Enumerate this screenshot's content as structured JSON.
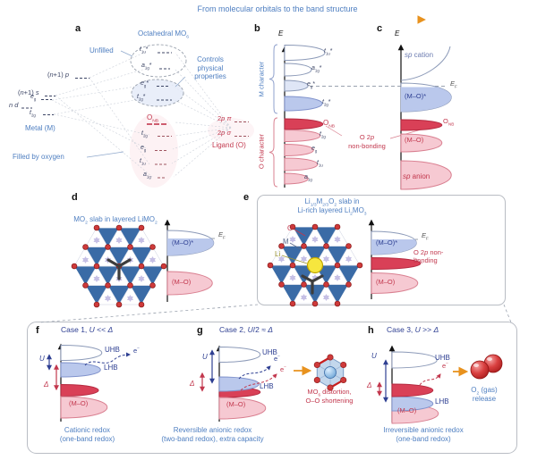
{
  "header": {
    "title": "From molecular orbitals to the band structure"
  },
  "colors": {
    "blue_label": "#4f7fc1",
    "navy": "#2e3f92",
    "red": "#c2374d",
    "crimson_fill": "#d94057",
    "pink_fill": "#f6c9d2",
    "blue_band_fill": "#bac8ec",
    "orange": "#e8921e",
    "box_border": "#b9bdc4",
    "oxygen_dot": "#cf3a3a",
    "lithium_yellow": "#f6e63e",
    "octahedra_blue": "#3a6ba6"
  },
  "panel_a": {
    "letter": "a",
    "title": "Octahedral MO<sub>6</sub>",
    "unfilled": "Unfilled",
    "controls": "Controls<br>physical<br>properties",
    "np": "(<i>n</i>+1) <i>p</i>",
    "ns": "(<i>n</i>+1) <i>s</i>",
    "nd": "<i>n</i> <i>d</i>",
    "eg_metal": "<i>e</i><sub>g</sub>",
    "t2g_metal": "<i>t</i><sub>2g</sub>",
    "metal": "Metal (M)",
    "filled": "Filled by oxygen",
    "ab_t1u": "<i>t</i><sub>1u</sub>*",
    "ab_a1g": "<i>a</i><sub>1g</sub>*",
    "ab_eg": "<i>e</i><sub>g</sub>*",
    "ab_t2g": "<i>t</i><sub>2g</sub>*",
    "onb": "O<sub>NB</sub>",
    "b_t2g": "<i>t</i><sub>2g</sub>",
    "b_eg": "<i>e</i><sub>g</sub>",
    "b_t1u": "<i>t</i><sub>1u</sub>",
    "b_a1g": "<i>a</i><sub>1g</sub>",
    "p_pi": "2<i>p</i> <i>π</i>",
    "p_sigma": "2<i>p</i> <i>σ</i>",
    "ligand": "Ligand (O)"
  },
  "panel_b": {
    "letter": "b",
    "axis": "<i>E</i>",
    "m_character": "M character",
    "o_character": "O character",
    "t1u_s": "<i>t</i><sub>1u</sub>*",
    "a1g_s": "<i>a</i><sub>1g</sub>*",
    "eg_s": "<i>e</i><sub>g</sub>*",
    "t2g_s": "<i>t</i><sub>2g</sub>*",
    "onb": "O<sub>NB</sub>",
    "t2g": "<i>t</i><sub>2g</sub>",
    "eg": "<i>e</i><sub>g</sub>",
    "t1u": "<i>t</i><sub>1u</sub>",
    "a1g": "<i>a</i><sub>1g</sub>",
    "nonbonding": "O 2<i>p</i><br>non-bonding"
  },
  "panel_c": {
    "letter": "c",
    "axis": "<i>E</i>",
    "sp_cation": "<i>sp</i> cation",
    "ef": "<i>E</i><sub>F</sub>",
    "mo_star": "(M–O)*",
    "onb": "O<sub>NB</sub>",
    "mo": "(M–O)",
    "sp_anion": "<i>sp</i> anion"
  },
  "panel_d": {
    "letter": "d",
    "title": "MO<sub>2</sub> slab in layered LiMO<sub>2</sub>",
    "ef": "<i>E</i><sub>F</sub>",
    "mo_star": "(M–O)*",
    "mo": "(M–O)"
  },
  "panel_e": {
    "letter": "e",
    "title": "Li<sub>1/3</sub>M<sub>2/3</sub>O<sub>2</sub> slab in<br>Li-rich layered Li<sub>2</sub>MO<sub>3</sub>",
    "legend_o": "O",
    "legend_m": "M",
    "legend_li": "Li",
    "ef": "<i>E</i><sub>F</sub>",
    "mo_star": "(M–O)*",
    "nonbonding": "O 2<i>p</i> non-<br>bonding",
    "mo": "(M–O)"
  },
  "panel_f": {
    "letter": "f",
    "case_title": "Case 1, <i>U</i> &lt;&lt; <i>Δ</i>",
    "u": "<i>U</i>",
    "delta": "<i>Δ</i>",
    "uhb": "UHB",
    "lhb": "LHB",
    "electron": "e<sup>−</sup>",
    "mo": "(M–O)",
    "caption": "Cationic redox<br>(one-band redox)"
  },
  "panel_g": {
    "letter": "g",
    "case_title": "Case 2, <i>U</i>/2 ≈ <i>Δ</i>",
    "u": "<i>U</i>",
    "delta": "<i>Δ</i>",
    "uhb": "UHB",
    "lhb": "LHB",
    "electron1": "e<sup>−</sup>",
    "electron2": "e<sup>−</sup>",
    "mo": "(M–O)",
    "distortion": "MO<sub>6</sub> distortion,<br>O–O shortening",
    "caption": "Reversible anionic redox<br>(two-band redox), extra capacity"
  },
  "panel_h": {
    "letter": "h",
    "case_title": "Case 3, <i>U</i> &gt;&gt; <i>Δ</i>",
    "u": "<i>U</i>",
    "delta": "<i>Δ</i>",
    "uhb": "UHB",
    "lhb": "LHB",
    "electron": "e<sup>−</sup>",
    "mo": "(M–O)",
    "release": "O<sub>2</sub> (gas)<br>release",
    "caption": "Irreversible anionic redox<br>(one-band redox)"
  }
}
